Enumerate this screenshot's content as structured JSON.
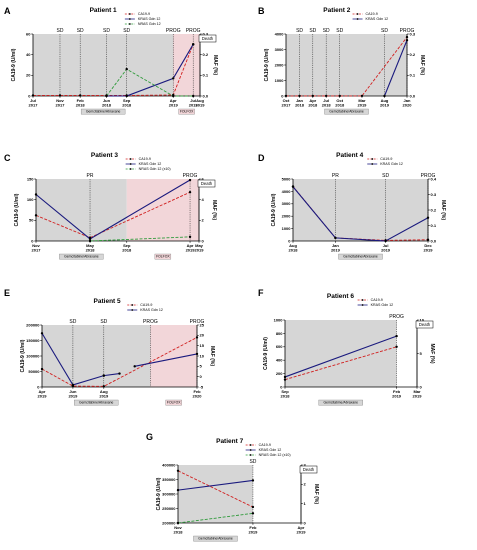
{
  "colors": {
    "ca199": "#d11f1f",
    "kras": "#1a1a7e",
    "nras": "#2e9a3a",
    "gem": "#d6d6d6",
    "folfox": "#f2d6d9"
  },
  "chart_data": [
    {
      "type": "line",
      "panel": "A",
      "title": "Patient 1",
      "ylabel_left": "CA19-9 (U/ml)",
      "ylabel_right": "MAF (%)",
      "left_ticks": [
        "0",
        "20",
        "40",
        "60"
      ],
      "left_max": 60,
      "right_ticks": [
        "0.0",
        "0.1",
        "0.2",
        "0.3"
      ],
      "right_max": 0.3,
      "x_dates": [
        "2017-07-01",
        "2017-11-01",
        "2018-02-01",
        "2018-06-01",
        "2018-09-01",
        "2019-04-01",
        "2019-07-01",
        "2019-08-01"
      ],
      "x_labels": [
        "Jul\n2017",
        "Nov\n2017",
        "Feb\n2018",
        "Jun\n2018",
        "Sep\n2018",
        "Apr\n2019",
        "Jul\n2019",
        "Aug\n2019"
      ],
      "annotations": [
        {
          "label": "SD",
          "date": "2017-11-01"
        },
        {
          "label": "SD",
          "date": "2018-02-01"
        },
        {
          "label": "SD",
          "date": "2018-06-01"
        },
        {
          "label": "SD",
          "date": "2018-09-01"
        },
        {
          "label": "PROG",
          "date": "2019-04-01"
        },
        {
          "label": "PROG",
          "date": "2019-07-01"
        }
      ],
      "death": {
        "label": "Death",
        "date": "2019-08-01"
      },
      "shade": [
        {
          "kind": "gem",
          "start": "2017-07-01",
          "end": "2019-04-01",
          "label": "Gemcitabine/Abraxane"
        },
        {
          "kind": "folfox",
          "start": "2019-04-01",
          "end": "2019-08-01",
          "label": "FOLFOX"
        }
      ],
      "legend": [
        "CA19-9",
        "KRAS Gdn 12",
        "NRAS Gdn 12"
      ],
      "series": [
        {
          "name": "CA19-9",
          "kind": "ca199",
          "axis": "left",
          "points": [
            [
              "2017-07-01",
              0.5
            ],
            [
              "2017-11-01",
              0.5
            ],
            [
              "2018-02-01",
              0.5
            ],
            [
              "2018-06-01",
              0.5
            ],
            [
              "2018-09-01",
              0.5
            ],
            [
              "2019-04-01",
              1
            ],
            [
              "2019-07-01",
              50
            ]
          ]
        },
        {
          "name": "KRAS Gdn 12",
          "kind": "kras",
          "axis": "right",
          "points": [
            [
              "2018-06-01",
              0
            ],
            [
              "2018-09-01",
              0
            ],
            [
              "2019-04-01",
              0.085
            ],
            [
              "2019-07-01",
              0.25
            ]
          ]
        },
        {
          "name": "NRAS Gdn 12",
          "kind": "nras",
          "axis": "right",
          "points": [
            [
              "2018-06-01",
              0
            ],
            [
              "2018-09-01",
              0.13
            ],
            [
              "2019-04-01",
              0
            ],
            [
              "2019-07-01",
              0
            ]
          ]
        }
      ]
    },
    {
      "type": "line",
      "panel": "B",
      "title": "Patient 2",
      "ylabel_left": "CA19-9 (U/ml)",
      "ylabel_right": "MAF (%)",
      "left_ticks": [
        "0",
        "1000",
        "2000",
        "3000",
        "4000"
      ],
      "left_max": 4000,
      "right_ticks": [
        "0.0",
        "0.1",
        "0.2",
        "0.3"
      ],
      "right_max": 0.3,
      "x_dates": [
        "2017-10-01",
        "2018-01-01",
        "2018-04-01",
        "2018-07-01",
        "2018-10-01",
        "2019-03-01",
        "2019-08-01",
        "2020-01-01"
      ],
      "x_labels": [
        "Oct\n2017",
        "Jan\n2018",
        "Apr\n2018",
        "Jul\n2018",
        "Oct\n2018",
        "Mar\n2019",
        "Aug\n2019",
        "Jan\n2020"
      ],
      "annotations": [
        {
          "label": "SD",
          "date": "2018-01-01"
        },
        {
          "label": "SD",
          "date": "2018-04-01"
        },
        {
          "label": "SD",
          "date": "2018-07-01"
        },
        {
          "label": "SD",
          "date": "2018-10-01"
        },
        {
          "label": "SD",
          "date": "2019-08-01"
        },
        {
          "label": "PROG",
          "date": "2020-01-01"
        }
      ],
      "shade": [
        {
          "kind": "gem",
          "start": "2017-10-01",
          "end": "2020-01-01",
          "label": "Gemcitabine/Abraxane"
        }
      ],
      "legend": [
        "CA19-9",
        "KRAS Gdn 12"
      ],
      "series": [
        {
          "name": "CA19-9",
          "kind": "ca199",
          "axis": "left",
          "points": [
            [
              "2017-10-01",
              5
            ],
            [
              "2018-01-01",
              5
            ],
            [
              "2018-04-01",
              5
            ],
            [
              "2018-07-01",
              5
            ],
            [
              "2018-10-01",
              5
            ],
            [
              "2019-03-01",
              5
            ],
            [
              "2020-01-01",
              3800
            ]
          ]
        },
        {
          "name": "KRAS Gdn 12",
          "kind": "kras",
          "axis": "right",
          "points": [
            [
              "2019-08-01",
              0
            ],
            [
              "2020-01-01",
              0.27
            ]
          ]
        }
      ]
    },
    {
      "type": "line",
      "panel": "C",
      "title": "Patient 3",
      "ylabel_left": "CA19-9 (U/ml)",
      "ylabel_right": "MAF (%)",
      "left_ticks": [
        "0",
        "50",
        "100",
        "150"
      ],
      "left_max": 150,
      "right_ticks": [
        "0",
        "2",
        "4",
        "6"
      ],
      "right_max": 6,
      "x_dates": [
        "2017-11-01",
        "2018-05-01",
        "2018-09-01",
        "2019-04-01",
        "2019-05-01"
      ],
      "x_labels": [
        "Nov\n2017",
        "May\n2018",
        "Sep\n2018",
        "Apr\n2019",
        "May\n2019"
      ],
      "annotations": [
        {
          "label": "PR",
          "date": "2018-05-01"
        },
        {
          "label": "PROG",
          "date": "2019-04-01"
        }
      ],
      "death": {
        "label": "Death",
        "date": "2019-05-01"
      },
      "shade": [
        {
          "kind": "gem",
          "start": "2017-11-01",
          "end": "2018-09-01",
          "label": "Gemcitabine/Abraxane"
        },
        {
          "kind": "folfox",
          "start": "2018-09-01",
          "end": "2019-05-01",
          "label": "FOLFOX"
        }
      ],
      "legend": [
        "CA19-9",
        "KRAS Gdn 12",
        "NRAS Gdn 12 (x10)"
      ],
      "series": [
        {
          "name": "CA19-9",
          "kind": "ca199",
          "axis": "left",
          "points": [
            [
              "2017-11-01",
              62
            ],
            [
              "2018-05-01",
              8
            ],
            [
              "2019-04-01",
              118
            ]
          ]
        },
        {
          "name": "KRAS Gdn 12",
          "kind": "kras",
          "axis": "right",
          "points": [
            [
              "2017-11-01",
              4.5
            ],
            [
              "2018-05-01",
              0.2
            ],
            [
              "2019-04-01",
              5.9
            ]
          ]
        },
        {
          "name": "NRAS Gdn 12 (x10)",
          "kind": "nras",
          "axis": "right",
          "points": [
            [
              "2018-05-01",
              0
            ],
            [
              "2019-04-01",
              0.4
            ]
          ]
        }
      ]
    },
    {
      "type": "line",
      "panel": "D",
      "title": "Patient 4",
      "ylabel_left": "CA19-9 (U/ml)",
      "ylabel_right": "MAF (%)",
      "left_ticks": [
        "0",
        "1000",
        "2000",
        "3000",
        "4000",
        "5000"
      ],
      "left_max": 5000,
      "right_ticks": [
        "0.0",
        "0.1",
        "0.2",
        "0.3",
        "0.4"
      ],
      "right_max": 0.4,
      "x_dates": [
        "2018-08-01",
        "2019-01-01",
        "2019-07-01",
        "2019-12-01"
      ],
      "x_labels": [
        "Aug\n2018",
        "Jan\n2019",
        "Jul\n2019",
        "Dec\n2019"
      ],
      "annotations": [
        {
          "label": "PR",
          "date": "2019-01-01"
        },
        {
          "label": "SD",
          "date": "2019-07-01"
        },
        {
          "label": "PROG",
          "date": "2019-12-01"
        }
      ],
      "shade": [
        {
          "kind": "gem",
          "start": "2018-08-01",
          "end": "2019-12-01",
          "label": "Gemcitabine/Abraxane"
        }
      ],
      "legend": [
        "CA19-9",
        "KRAS Gdn 12"
      ],
      "series": [
        {
          "name": "CA19-9",
          "kind": "ca199",
          "axis": "left",
          "points": [
            [
              "2018-08-01",
              4400
            ],
            [
              "2019-01-01",
              250
            ],
            [
              "2019-07-01",
              50
            ],
            [
              "2019-12-01",
              100
            ]
          ]
        },
        {
          "name": "KRAS Gdn 12",
          "kind": "kras",
          "axis": "right",
          "points": [
            [
              "2018-08-01",
              0.35
            ],
            [
              "2019-01-01",
              0.02
            ],
            [
              "2019-07-01",
              0
            ],
            [
              "2019-12-01",
              0.15
            ]
          ]
        }
      ]
    },
    {
      "type": "line",
      "panel": "E",
      "title": "Patient 5",
      "ylabel_left": "CA19-9 (U/ml)",
      "ylabel_right": "MAF (%)",
      "left_ticks": [
        "0",
        "50000",
        "100000",
        "150000",
        "200000"
      ],
      "left_max": 200000,
      "right_ticks": [
        "-5",
        "0",
        "5",
        "10",
        "15",
        "20",
        "25"
      ],
      "right_min": -5,
      "right_max": 25,
      "x_dates": [
        "2019-04-01",
        "2019-06-01",
        "2019-08-01",
        "2020-02-01"
      ],
      "x_labels": [
        "Apr\n2019",
        "Jun\n2019",
        "Aug\n2019",
        "Feb\n2020"
      ],
      "annotations": [
        {
          "label": "SD",
          "date": "2019-06-01"
        },
        {
          "label": "SD",
          "date": "2019-08-01"
        },
        {
          "label": "PROG",
          "date": "2019-11-01"
        },
        {
          "label": "PROG",
          "date": "2020-02-01"
        }
      ],
      "shade": [
        {
          "kind": "gem",
          "start": "2019-04-01",
          "end": "2019-11-01",
          "label": "Gemcitabine/Abraxane"
        },
        {
          "kind": "folfox",
          "start": "2019-11-01",
          "end": "2020-02-01",
          "label": "FOLFOX"
        }
      ],
      "legend": [
        "CA19-9",
        "KRAS Gdn 12"
      ],
      "series": [
        {
          "name": "CA19-9",
          "kind": "ca199",
          "axis": "left",
          "points": [
            [
              "2019-04-01",
              58000
            ],
            [
              "2019-06-01",
              3000
            ],
            [
              "2019-08-01",
              2000
            ],
            [
              "2020-02-01",
              160000
            ]
          ]
        },
        {
          "name": "KRAS Gdn 12",
          "kind": "kras",
          "axis": "right",
          "segments": [
            [
              [
                "2019-04-01",
                21
              ],
              [
                "2019-06-01",
                -4
              ]
            ],
            [
              [
                "2019-06-01",
                -4
              ],
              [
                "2019-08-01",
                0.5
              ]
            ],
            [
              [
                "2019-08-01",
                0.5
              ],
              [
                "2019-09-01",
                1.5
              ]
            ],
            [
              [
                "2019-10-01",
                5
              ],
              [
                "2020-02-01",
                11
              ]
            ]
          ]
        }
      ]
    },
    {
      "type": "line",
      "panel": "F",
      "title": "Patient 6",
      "ylabel_left": "CA19-9 (U/ml)",
      "ylabel_right": "MAF (%)",
      "left_ticks": [
        "0",
        "200",
        "400",
        "600",
        "800",
        "1000"
      ],
      "left_max": 1000,
      "right_ticks": [
        "0",
        "5",
        "10"
      ],
      "right_max": 10,
      "x_dates": [
        "2018-09-01",
        "2019-02-01",
        "2019-03-01"
      ],
      "x_labels": [
        "Sep\n2018",
        "Feb\n2019",
        "Mar\n2019"
      ],
      "annotations": [
        {
          "label": "PROG",
          "date": "2019-02-01"
        }
      ],
      "death": {
        "label": "Death",
        "date": "2019-03-01"
      },
      "shade": [
        {
          "kind": "gem",
          "start": "2018-09-01",
          "end": "2019-02-01",
          "label": "Gemcitabine/Abraxane"
        }
      ],
      "legend": [
        "CA19-9",
        "KRAS Gdn 12"
      ],
      "series": [
        {
          "name": "CA19-9",
          "kind": "ca199",
          "axis": "left",
          "points": [
            [
              "2018-09-01",
              110
            ],
            [
              "2019-02-01",
              600
            ]
          ]
        },
        {
          "name": "KRAS Gdn 12",
          "kind": "kras",
          "axis": "right",
          "points": [
            [
              "2018-09-01",
              1.5
            ],
            [
              "2019-02-01",
              7.6
            ]
          ]
        }
      ]
    },
    {
      "type": "line",
      "panel": "G",
      "title": "Patient 7",
      "ylabel_left": "CA19-9 (U/ml)",
      "ylabel_right": "MAF (%)",
      "left_ticks": [
        "200000",
        "250000",
        "300000",
        "350000",
        "400000"
      ],
      "left_min": 200000,
      "left_max": 400000,
      "right_ticks": [
        "0",
        "1",
        "2",
        "3"
      ],
      "right_max": 3,
      "x_dates": [
        "2018-11-01",
        "2019-02-01",
        "2019-04-01"
      ],
      "x_labels": [
        "Nov\n2018",
        "Feb\n2019",
        "Apr\n2019"
      ],
      "annotations": [
        {
          "label": "SD",
          "date": "2019-02-01"
        }
      ],
      "death": {
        "label": "Death",
        "date": "2019-04-01"
      },
      "shade": [
        {
          "kind": "gem",
          "start": "2018-11-01",
          "end": "2019-02-01",
          "label": "Gemcitabine/Abraxane"
        }
      ],
      "legend": [
        "CA19-9",
        "KRAS Gdn 12",
        "NRAS Gdn 12 (x10)"
      ],
      "series": [
        {
          "name": "CA19-9",
          "kind": "ca199",
          "axis": "left",
          "points": [
            [
              "2018-11-01",
              380000
            ],
            [
              "2019-02-01",
              255000
            ]
          ]
        },
        {
          "name": "KRAS Gdn 12",
          "kind": "kras",
          "axis": "right",
          "points": [
            [
              "2018-11-01",
              1.7
            ],
            [
              "2019-02-01",
              2.2
            ]
          ]
        },
        {
          "name": "NRAS Gdn 12 (x10)",
          "kind": "nras",
          "axis": "right",
          "points": [
            [
              "2018-11-01",
              0
            ],
            [
              "2019-02-01",
              0.5
            ]
          ]
        }
      ]
    }
  ]
}
